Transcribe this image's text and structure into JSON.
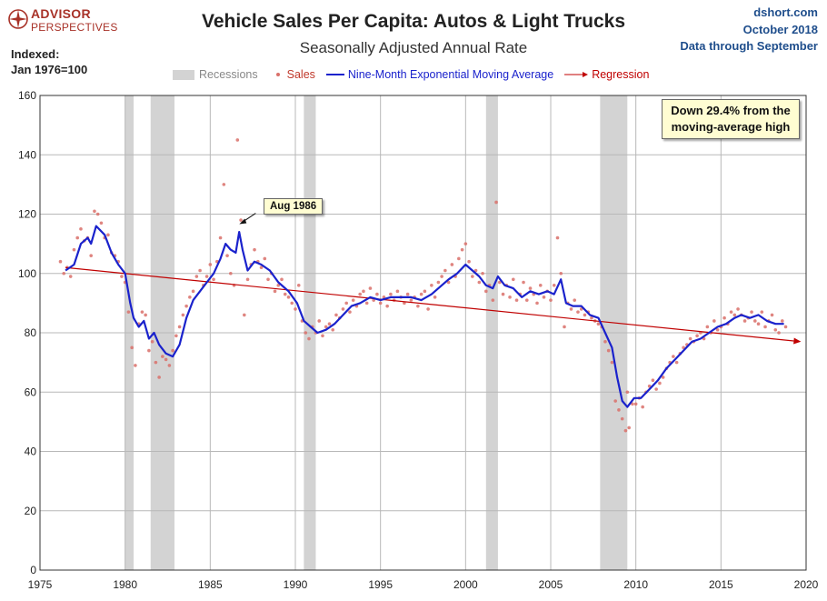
{
  "header": {
    "title": "Vehicle Sales Per Capita: Autos & Light Trucks",
    "subtitle": "Seasonally Adjusted Annual Rate",
    "logo_line1": "ADVISOR",
    "logo_line2": "PERSPECTIVES",
    "source_line1": "dshort.com",
    "source_line2": "October 2018",
    "source_line3": "Data through September",
    "index_line1": "Indexed:",
    "index_line2": "Jan 1976=100"
  },
  "legend": {
    "recessions": "Recessions",
    "sales": "Sales",
    "ema": "Nine-Month Exponential Moving Average",
    "regression": "Regression"
  },
  "annotations": {
    "callout": "Down 29.4% from the moving-average high",
    "aug": "Aug 1986"
  },
  "colors": {
    "recession": "#d3d3d3",
    "sales": "#d9706a",
    "ema": "#1a22cc",
    "regression": "#c00000",
    "grid": "#b8b8b8",
    "logo": "#a83228",
    "source": "#1f4e8c"
  },
  "chart_data": {
    "type": "line",
    "x_ticks": [
      1975,
      1980,
      1985,
      1990,
      1995,
      2000,
      2005,
      2010,
      2015,
      2020
    ],
    "y_ticks": [
      0,
      20,
      40,
      60,
      80,
      100,
      120,
      140,
      160
    ],
    "xlim": [
      1975,
      2020
    ],
    "ylim": [
      0,
      160
    ],
    "grid": true,
    "recessions": [
      [
        1980.0,
        1980.5
      ],
      [
        1981.5,
        1982.9
      ],
      [
        1990.5,
        1991.2
      ],
      [
        2001.2,
        2001.9
      ],
      [
        2007.9,
        2009.5
      ]
    ],
    "ema_series": {
      "name": "Nine-Month Exponential Moving Average",
      "points": [
        [
          1976.5,
          101
        ],
        [
          1977.0,
          103
        ],
        [
          1977.4,
          110
        ],
        [
          1977.8,
          112
        ],
        [
          1978.0,
          110
        ],
        [
          1978.3,
          116
        ],
        [
          1978.8,
          113
        ],
        [
          1979.2,
          107
        ],
        [
          1979.6,
          103
        ],
        [
          1980.0,
          100
        ],
        [
          1980.3,
          90
        ],
        [
          1980.5,
          85
        ],
        [
          1980.8,
          82
        ],
        [
          1981.1,
          84
        ],
        [
          1981.4,
          78
        ],
        [
          1981.7,
          80
        ],
        [
          1982.0,
          76
        ],
        [
          1982.4,
          73
        ],
        [
          1982.8,
          72
        ],
        [
          1983.2,
          76
        ],
        [
          1983.6,
          85
        ],
        [
          1984.0,
          91
        ],
        [
          1984.4,
          94
        ],
        [
          1984.8,
          97
        ],
        [
          1985.2,
          100
        ],
        [
          1985.6,
          105
        ],
        [
          1985.9,
          110
        ],
        [
          1986.2,
          108
        ],
        [
          1986.5,
          107
        ],
        [
          1986.7,
          114
        ],
        [
          1986.9,
          108
        ],
        [
          1987.2,
          101
        ],
        [
          1987.6,
          104
        ],
        [
          1988.0,
          103
        ],
        [
          1988.5,
          101
        ],
        [
          1989.0,
          97
        ],
        [
          1989.6,
          94
        ],
        [
          1990.1,
          90
        ],
        [
          1990.5,
          84
        ],
        [
          1990.9,
          82
        ],
        [
          1991.3,
          80
        ],
        [
          1991.8,
          81
        ],
        [
          1992.3,
          83
        ],
        [
          1992.8,
          86
        ],
        [
          1993.3,
          89
        ],
        [
          1993.8,
          90
        ],
        [
          1994.4,
          92
        ],
        [
          1995.0,
          91
        ],
        [
          1995.6,
          92
        ],
        [
          1996.2,
          92
        ],
        [
          1996.8,
          92
        ],
        [
          1997.4,
          91
        ],
        [
          1998.0,
          93
        ],
        [
          1998.6,
          96
        ],
        [
          1999.0,
          98
        ],
        [
          1999.5,
          100
        ],
        [
          2000.0,
          103
        ],
        [
          2000.4,
          101
        ],
        [
          2000.8,
          99
        ],
        [
          2001.2,
          96
        ],
        [
          2001.6,
          95
        ],
        [
          2001.9,
          99
        ],
        [
          2002.3,
          96
        ],
        [
          2002.8,
          95
        ],
        [
          2003.3,
          92
        ],
        [
          2003.8,
          94
        ],
        [
          2004.3,
          93
        ],
        [
          2004.8,
          94
        ],
        [
          2005.2,
          93
        ],
        [
          2005.6,
          98
        ],
        [
          2005.9,
          90
        ],
        [
          2006.3,
          89
        ],
        [
          2006.8,
          89
        ],
        [
          2007.3,
          86
        ],
        [
          2007.8,
          85
        ],
        [
          2008.2,
          80
        ],
        [
          2008.6,
          75
        ],
        [
          2008.9,
          65
        ],
        [
          2009.2,
          57
        ],
        [
          2009.5,
          55
        ],
        [
          2009.9,
          58
        ],
        [
          2010.3,
          58
        ],
        [
          2010.8,
          61
        ],
        [
          2011.3,
          64
        ],
        [
          2011.8,
          68
        ],
        [
          2012.3,
          71
        ],
        [
          2012.8,
          74
        ],
        [
          2013.3,
          77
        ],
        [
          2013.8,
          78
        ],
        [
          2014.3,
          80
        ],
        [
          2014.8,
          82
        ],
        [
          2015.3,
          83
        ],
        [
          2015.8,
          85
        ],
        [
          2016.2,
          86
        ],
        [
          2016.7,
          85
        ],
        [
          2017.2,
          86
        ],
        [
          2017.7,
          84
        ],
        [
          2018.2,
          83
        ],
        [
          2018.7,
          83
        ]
      ]
    },
    "sales_series": {
      "name": "Sales",
      "points": [
        [
          1976.2,
          104
        ],
        [
          1976.4,
          100
        ],
        [
          1976.6,
          102
        ],
        [
          1976.8,
          99
        ],
        [
          1977.0,
          108
        ],
        [
          1977.2,
          112
        ],
        [
          1977.4,
          115
        ],
        [
          1977.6,
          111
        ],
        [
          1977.8,
          112
        ],
        [
          1978.0,
          106
        ],
        [
          1978.2,
          121
        ],
        [
          1978.4,
          120
        ],
        [
          1978.6,
          117
        ],
        [
          1978.8,
          112
        ],
        [
          1979.0,
          113
        ],
        [
          1979.2,
          107
        ],
        [
          1979.4,
          106
        ],
        [
          1979.6,
          104
        ],
        [
          1979.8,
          99
        ],
        [
          1980.0,
          97
        ],
        [
          1980.2,
          87
        ],
        [
          1980.4,
          75
        ],
        [
          1980.6,
          69
        ],
        [
          1980.8,
          83
        ],
        [
          1981.0,
          87
        ],
        [
          1981.2,
          86
        ],
        [
          1981.4,
          74
        ],
        [
          1981.6,
          77
        ],
        [
          1981.8,
          70
        ],
        [
          1982.0,
          65
        ],
        [
          1982.2,
          72
        ],
        [
          1982.4,
          71
        ],
        [
          1982.6,
          69
        ],
        [
          1982.8,
          74
        ],
        [
          1983.0,
          79
        ],
        [
          1983.2,
          82
        ],
        [
          1983.4,
          86
        ],
        [
          1983.6,
          89
        ],
        [
          1983.8,
          92
        ],
        [
          1984.0,
          94
        ],
        [
          1984.2,
          99
        ],
        [
          1984.4,
          101
        ],
        [
          1984.6,
          96
        ],
        [
          1984.8,
          99
        ],
        [
          1985.0,
          103
        ],
        [
          1985.2,
          98
        ],
        [
          1985.4,
          104
        ],
        [
          1985.6,
          112
        ],
        [
          1985.8,
          130
        ],
        [
          1986.0,
          106
        ],
        [
          1986.2,
          100
        ],
        [
          1986.4,
          96
        ],
        [
          1986.6,
          145
        ],
        [
          1986.8,
          118
        ],
        [
          1987.0,
          86
        ],
        [
          1987.2,
          98
        ],
        [
          1987.4,
          103
        ],
        [
          1987.6,
          108
        ],
        [
          1987.8,
          104
        ],
        [
          1988.0,
          102
        ],
        [
          1988.2,
          105
        ],
        [
          1988.4,
          98
        ],
        [
          1988.6,
          100
        ],
        [
          1988.8,
          94
        ],
        [
          1989.0,
          96
        ],
        [
          1989.2,
          98
        ],
        [
          1989.4,
          93
        ],
        [
          1989.6,
          92
        ],
        [
          1989.8,
          90
        ],
        [
          1990.0,
          88
        ],
        [
          1990.2,
          96
        ],
        [
          1990.4,
          84
        ],
        [
          1990.6,
          80
        ],
        [
          1990.8,
          78
        ],
        [
          1991.0,
          82
        ],
        [
          1991.2,
          80
        ],
        [
          1991.4,
          84
        ],
        [
          1991.6,
          79
        ],
        [
          1991.8,
          82
        ],
        [
          1992.0,
          83
        ],
        [
          1992.2,
          81
        ],
        [
          1992.4,
          86
        ],
        [
          1992.6,
          85
        ],
        [
          1992.8,
          88
        ],
        [
          1993.0,
          90
        ],
        [
          1993.2,
          87
        ],
        [
          1993.4,
          91
        ],
        [
          1993.6,
          89
        ],
        [
          1993.8,
          93
        ],
        [
          1994.0,
          94
        ],
        [
          1994.2,
          90
        ],
        [
          1994.4,
          95
        ],
        [
          1994.6,
          91
        ],
        [
          1994.8,
          93
        ],
        [
          1995.0,
          90
        ],
        [
          1995.2,
          92
        ],
        [
          1995.4,
          89
        ],
        [
          1995.6,
          93
        ],
        [
          1995.8,
          91
        ],
        [
          1996.0,
          94
        ],
        [
          1996.2,
          92
        ],
        [
          1996.4,
          90
        ],
        [
          1996.6,
          93
        ],
        [
          1996.8,
          91
        ],
        [
          1997.0,
          92
        ],
        [
          1997.2,
          89
        ],
        [
          1997.4,
          93
        ],
        [
          1997.6,
          94
        ],
        [
          1997.8,
          88
        ],
        [
          1998.0,
          96
        ],
        [
          1998.2,
          92
        ],
        [
          1998.4,
          97
        ],
        [
          1998.6,
          99
        ],
        [
          1998.8,
          101
        ],
        [
          1999.0,
          97
        ],
        [
          1999.2,
          103
        ],
        [
          1999.4,
          99
        ],
        [
          1999.6,
          105
        ],
        [
          1999.8,
          108
        ],
        [
          2000.0,
          110
        ],
        [
          2000.2,
          104
        ],
        [
          2000.4,
          99
        ],
        [
          2000.6,
          101
        ],
        [
          2000.8,
          97
        ],
        [
          2001.0,
          100
        ],
        [
          2001.2,
          94
        ],
        [
          2001.4,
          96
        ],
        [
          2001.6,
          91
        ],
        [
          2001.8,
          124
        ],
        [
          2002.0,
          97
        ],
        [
          2002.2,
          93
        ],
        [
          2002.4,
          96
        ],
        [
          2002.6,
          92
        ],
        [
          2002.8,
          98
        ],
        [
          2003.0,
          91
        ],
        [
          2003.2,
          93
        ],
        [
          2003.4,
          97
        ],
        [
          2003.6,
          91
        ],
        [
          2003.8,
          95
        ],
        [
          2004.0,
          93
        ],
        [
          2004.2,
          90
        ],
        [
          2004.4,
          96
        ],
        [
          2004.6,
          92
        ],
        [
          2004.8,
          94
        ],
        [
          2005.0,
          91
        ],
        [
          2005.2,
          96
        ],
        [
          2005.4,
          112
        ],
        [
          2005.6,
          100
        ],
        [
          2005.8,
          82
        ],
        [
          2006.0,
          90
        ],
        [
          2006.2,
          88
        ],
        [
          2006.4,
          91
        ],
        [
          2006.6,
          87
        ],
        [
          2006.8,
          88
        ],
        [
          2007.0,
          86
        ],
        [
          2007.2,
          87
        ],
        [
          2007.4,
          85
        ],
        [
          2007.6,
          84
        ],
        [
          2007.8,
          83
        ],
        [
          2008.0,
          82
        ],
        [
          2008.2,
          77
        ],
        [
          2008.4,
          74
        ],
        [
          2008.6,
          70
        ],
        [
          2008.8,
          57
        ],
        [
          2009.0,
          54
        ],
        [
          2009.2,
          51
        ],
        [
          2009.4,
          47
        ],
        [
          2009.5,
          60
        ],
        [
          2009.6,
          48
        ],
        [
          2009.8,
          56
        ],
        [
          2010.0,
          56
        ],
        [
          2010.2,
          58
        ],
        [
          2010.4,
          55
        ],
        [
          2010.6,
          60
        ],
        [
          2010.8,
          62
        ],
        [
          2011.0,
          64
        ],
        [
          2011.2,
          61
        ],
        [
          2011.4,
          63
        ],
        [
          2011.6,
          65
        ],
        [
          2011.8,
          68
        ],
        [
          2012.0,
          70
        ],
        [
          2012.2,
          72
        ],
        [
          2012.4,
          70
        ],
        [
          2012.6,
          73
        ],
        [
          2012.8,
          75
        ],
        [
          2013.0,
          76
        ],
        [
          2013.2,
          78
        ],
        [
          2013.4,
          77
        ],
        [
          2013.6,
          79
        ],
        [
          2013.8,
          80
        ],
        [
          2014.0,
          78
        ],
        [
          2014.2,
          82
        ],
        [
          2014.4,
          80
        ],
        [
          2014.6,
          84
        ],
        [
          2014.8,
          81
        ],
        [
          2015.0,
          82
        ],
        [
          2015.2,
          85
        ],
        [
          2015.4,
          83
        ],
        [
          2015.6,
          87
        ],
        [
          2015.8,
          86
        ],
        [
          2016.0,
          88
        ],
        [
          2016.2,
          86
        ],
        [
          2016.4,
          84
        ],
        [
          2016.6,
          85
        ],
        [
          2016.8,
          87
        ],
        [
          2017.0,
          84
        ],
        [
          2017.2,
          83
        ],
        [
          2017.4,
          87
        ],
        [
          2017.6,
          82
        ],
        [
          2017.8,
          84
        ],
        [
          2018.0,
          86
        ],
        [
          2018.2,
          81
        ],
        [
          2018.4,
          80
        ],
        [
          2018.6,
          84
        ],
        [
          2018.8,
          82
        ]
      ]
    },
    "regression": {
      "name": "Regression",
      "start": [
        1976.5,
        102
      ],
      "end": [
        2019.7,
        77
      ]
    },
    "aug_point": [
      1986.6,
      116
    ]
  }
}
